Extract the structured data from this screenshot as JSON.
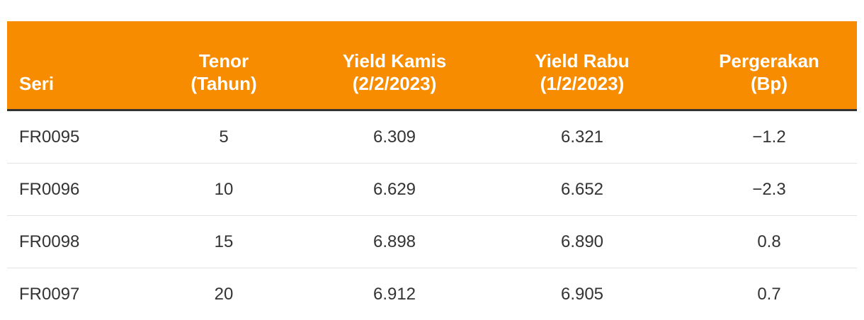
{
  "table": {
    "header": [
      [
        "Seri"
      ],
      [
        "Tenor",
        "(Tahun)"
      ],
      [
        "Yield Kamis",
        "(2/2/2023)"
      ],
      [
        "Yield Rabu",
        "(1/2/2023)"
      ],
      [
        "Pergerakan",
        "(Bp)"
      ]
    ],
    "rows": [
      [
        "FR0095",
        "5",
        "6.309",
        "6.321",
        "−1.2"
      ],
      [
        "FR0096",
        "10",
        "6.629",
        "6.652",
        "−2.3"
      ],
      [
        "FR0098",
        "15",
        "6.898",
        "6.890",
        "0.8"
      ],
      [
        "FR0097",
        "20",
        "6.912",
        "6.905",
        "0.7"
      ]
    ]
  }
}
